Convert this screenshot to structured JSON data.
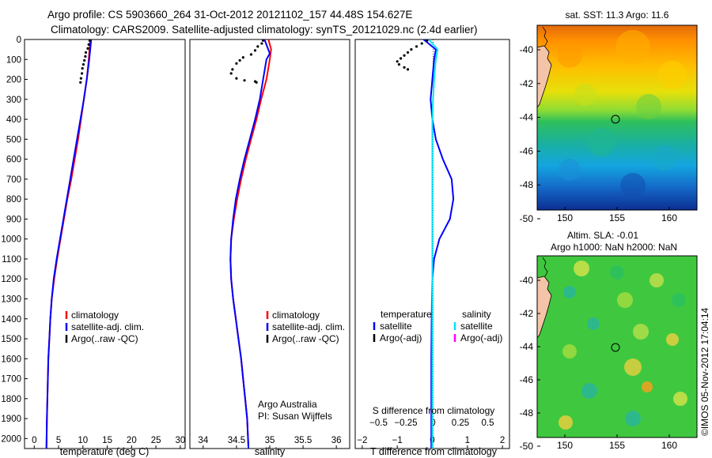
{
  "header": {
    "line1": "Argo profile: CS 5903660_264 31-Oct-2012 20121102_157 44.48S 154.627E",
    "line2": "Climatology: CARS2009. Satellite-adjusted climatology: synTS_20121029.nc (2.4d earlier)"
  },
  "colors": {
    "climatology": "#ff0000",
    "satellite": "#0000ff",
    "argo": "#000000",
    "s_satellite": "#00e5ff",
    "s_argo": "#ff00ff"
  },
  "chart_data": [
    {
      "type": "line",
      "title": "",
      "xlabel": "temperature (deg C)",
      "ylabel": "",
      "xlim": [
        -2,
        31
      ],
      "ylim": [
        2050,
        0
      ],
      "xticks": [
        0,
        5,
        10,
        15,
        20,
        25,
        30
      ],
      "yticks": [
        0,
        100,
        200,
        300,
        400,
        500,
        600,
        700,
        800,
        900,
        1000,
        1100,
        1200,
        1300,
        1400,
        1500,
        1600,
        1700,
        1800,
        1900,
        2000
      ],
      "legend": [
        "climatology",
        "satellite-adj. clim.",
        "Argo(..raw -QC)"
      ],
      "legend_position": "lower-center",
      "series": [
        {
          "name": "climatology",
          "color": "climatology",
          "style": "line",
          "points": [
            [
              11.5,
              0
            ],
            [
              11.2,
              100
            ],
            [
              10.8,
              200
            ],
            [
              10.2,
              300
            ],
            [
              9.6,
              400
            ],
            [
              9.0,
              500
            ],
            [
              8.3,
              600
            ],
            [
              7.6,
              700
            ],
            [
              6.8,
              800
            ],
            [
              6.1,
              900
            ],
            [
              5.4,
              1000
            ],
            [
              4.7,
              1100
            ],
            [
              4.1,
              1200
            ],
            [
              3.6,
              1300
            ],
            [
              3.3,
              1400
            ],
            [
              3.1,
              1500
            ],
            [
              2.9,
              1600
            ],
            [
              2.8,
              1700
            ],
            [
              2.7,
              1800
            ],
            [
              2.6,
              1900
            ],
            [
              2.5,
              2050
            ]
          ]
        },
        {
          "name": "satellite-adj. clim.",
          "color": "satellite",
          "style": "line",
          "points": [
            [
              11.7,
              0
            ],
            [
              11.3,
              100
            ],
            [
              10.8,
              200
            ],
            [
              10.2,
              300
            ],
            [
              9.5,
              400
            ],
            [
              8.8,
              500
            ],
            [
              8.1,
              600
            ],
            [
              7.4,
              700
            ],
            [
              6.7,
              800
            ],
            [
              6.0,
              900
            ],
            [
              5.3,
              1000
            ],
            [
              4.6,
              1100
            ],
            [
              4.0,
              1200
            ],
            [
              3.6,
              1300
            ],
            [
              3.3,
              1400
            ],
            [
              3.1,
              1500
            ],
            [
              2.9,
              1600
            ],
            [
              2.8,
              1700
            ],
            [
              2.7,
              1800
            ],
            [
              2.6,
              1900
            ],
            [
              2.5,
              2050
            ]
          ]
        },
        {
          "name": "Argo(..raw -QC)",
          "color": "argo",
          "style": "dots",
          "points": [
            [
              11.4,
              5
            ],
            [
              11.2,
              25
            ],
            [
              11.0,
              45
            ],
            [
              10.6,
              65
            ],
            [
              10.5,
              85
            ],
            [
              10.3,
              105
            ],
            [
              10.1,
              125
            ],
            [
              9.9,
              145
            ],
            [
              9.8,
              170
            ],
            [
              9.6,
              195
            ],
            [
              9.5,
              215
            ]
          ]
        }
      ]
    },
    {
      "type": "line",
      "title": "",
      "xlabel": "salinity",
      "ylabel": "",
      "xlim": [
        33.8,
        36.2
      ],
      "ylim": [
        2050,
        0
      ],
      "xticks": [
        34,
        34.5,
        35,
        35.5,
        36
      ],
      "xtick_labels": [
        "34",
        "34.5",
        "35",
        "35.5",
        "36"
      ],
      "legend": [
        "climatology",
        "satellite-adj. clim.",
        "Argo(..raw -QC)"
      ],
      "legend_position": "lower-right",
      "annotation": [
        "Argo Australia",
        "PI: Susan Wijffels"
      ],
      "series": [
        {
          "name": "climatology",
          "color": "climatology",
          "style": "line",
          "points": [
            [
              34.98,
              0
            ],
            [
              35.02,
              50
            ],
            [
              35.0,
              100
            ],
            [
              34.95,
              200
            ],
            [
              34.87,
              300
            ],
            [
              34.8,
              400
            ],
            [
              34.72,
              500
            ],
            [
              34.64,
              600
            ],
            [
              34.57,
              700
            ],
            [
              34.51,
              800
            ],
            [
              34.46,
              900
            ],
            [
              34.42,
              1000
            ],
            [
              34.41,
              1100
            ],
            [
              34.42,
              1200
            ],
            [
              34.45,
              1300
            ],
            [
              34.49,
              1400
            ],
            [
              34.53,
              1500
            ],
            [
              34.57,
              1600
            ],
            [
              34.6,
              1700
            ],
            [
              34.63,
              1800
            ],
            [
              34.66,
              1900
            ],
            [
              34.68,
              2050
            ]
          ]
        },
        {
          "name": "satellite-adj. clim.",
          "color": "satellite",
          "style": "line",
          "points": [
            [
              34.92,
              0
            ],
            [
              35.0,
              70
            ],
            [
              34.95,
              100
            ],
            [
              34.9,
              200
            ],
            [
              34.85,
              300
            ],
            [
              34.78,
              400
            ],
            [
              34.7,
              500
            ],
            [
              34.62,
              600
            ],
            [
              34.55,
              700
            ],
            [
              34.49,
              800
            ],
            [
              34.45,
              900
            ],
            [
              34.42,
              1000
            ],
            [
              34.41,
              1100
            ],
            [
              34.42,
              1200
            ],
            [
              34.45,
              1300
            ],
            [
              34.49,
              1400
            ],
            [
              34.53,
              1500
            ],
            [
              34.57,
              1600
            ],
            [
              34.6,
              1700
            ],
            [
              34.63,
              1800
            ],
            [
              34.66,
              1900
            ],
            [
              34.68,
              2050
            ]
          ]
        },
        {
          "name": "Argo(..raw -QC)",
          "color": "argo",
          "style": "dots",
          "points": [
            [
              34.9,
              5
            ],
            [
              34.88,
              20
            ],
            [
              34.82,
              35
            ],
            [
              34.78,
              55
            ],
            [
              34.72,
              75
            ],
            [
              34.6,
              90
            ],
            [
              34.55,
              105
            ],
            [
              34.5,
              120
            ],
            [
              34.44,
              150
            ],
            [
              34.42,
              170
            ],
            [
              34.5,
              195
            ],
            [
              34.62,
              205
            ],
            [
              34.78,
              210
            ],
            [
              34.8,
              215
            ]
          ]
        }
      ]
    },
    {
      "type": "line",
      "title": "",
      "xlabel": "T difference from climatology",
      "ylabel": "",
      "xlim": [
        -2.2,
        2.2
      ],
      "ylim": [
        2050,
        0
      ],
      "xticks": [
        -2,
        -1,
        0,
        1,
        2
      ],
      "top_axis_label": "S difference from climatology",
      "top_xticks": [
        -0.5,
        -0.25,
        0,
        0.25,
        0.5
      ],
      "top_xtick_labels": [
        "−0.5",
        "−0.25",
        "0",
        "0.25",
        "0.5"
      ],
      "legend_groups": {
        "temperature": [
          "satellite",
          "Argo(-adj)"
        ],
        "salinity": [
          "satellite",
          "Argo(-adj)"
        ]
      },
      "legend_headers": [
        "temperature",
        "salinity"
      ],
      "series": [
        {
          "name": "temperature satellite",
          "color": "satellite",
          "style": "line",
          "points": [
            [
              -0.25,
              0
            ],
            [
              0.1,
              50
            ],
            [
              0.05,
              100
            ],
            [
              0.0,
              200
            ],
            [
              -0.05,
              300
            ],
            [
              0.0,
              400
            ],
            [
              0.1,
              500
            ],
            [
              0.3,
              600
            ],
            [
              0.55,
              700
            ],
            [
              0.6,
              800
            ],
            [
              0.5,
              900
            ],
            [
              0.2,
              1000
            ],
            [
              0.05,
              1100
            ],
            [
              0.0,
              1200
            ],
            [
              -0.02,
              1400
            ],
            [
              -0.03,
              1600
            ],
            [
              -0.03,
              1800
            ],
            [
              -0.03,
              2050
            ]
          ]
        },
        {
          "name": "salinity satellite",
          "color": "s_satellite",
          "style": "line",
          "points": [
            [
              -0.1,
              0
            ],
            [
              0.15,
              50
            ],
            [
              0.1,
              100
            ],
            [
              0.05,
              200
            ],
            [
              0.02,
              300
            ],
            [
              0.0,
              400
            ],
            [
              0.0,
              600
            ],
            [
              0.0,
              800
            ],
            [
              0.0,
              1000
            ],
            [
              0.0,
              1200
            ],
            [
              0.0,
              1400
            ],
            [
              0.0,
              1600
            ],
            [
              0.0,
              1800
            ],
            [
              0.0,
              2050
            ]
          ]
        },
        {
          "name": "temperature Argo(-adj)",
          "color": "argo",
          "style": "dots",
          "points": [
            [
              -0.15,
              5
            ],
            [
              -0.3,
              20
            ],
            [
              -0.45,
              35
            ],
            [
              -0.6,
              50
            ],
            [
              -0.7,
              65
            ],
            [
              -0.8,
              80
            ],
            [
              -0.9,
              95
            ],
            [
              -1.0,
              110
            ],
            [
              -0.95,
              125
            ],
            [
              -0.8,
              140
            ],
            [
              -0.7,
              150
            ]
          ]
        }
      ]
    }
  ],
  "maps": {
    "sst": {
      "title": "sat. SST: 11.3 Argo: 11.6",
      "xticks": [
        "150",
        "155",
        "160"
      ],
      "yticks": [
        "-40",
        "-42",
        "-44",
        "-46",
        "-48",
        "-50"
      ]
    },
    "sla": {
      "title_line1": "Altim. SLA: -0.01",
      "title_line2": "Argo h1000: NaN h2000: NaN",
      "xticks": [
        "150",
        "155",
        "160"
      ],
      "yticks": [
        "-40",
        "-42",
        "-44",
        "-46",
        "-48",
        "-50"
      ]
    }
  },
  "footer": {
    "stamp": "©IMOS 05-Nov-2012 17:04:14"
  }
}
